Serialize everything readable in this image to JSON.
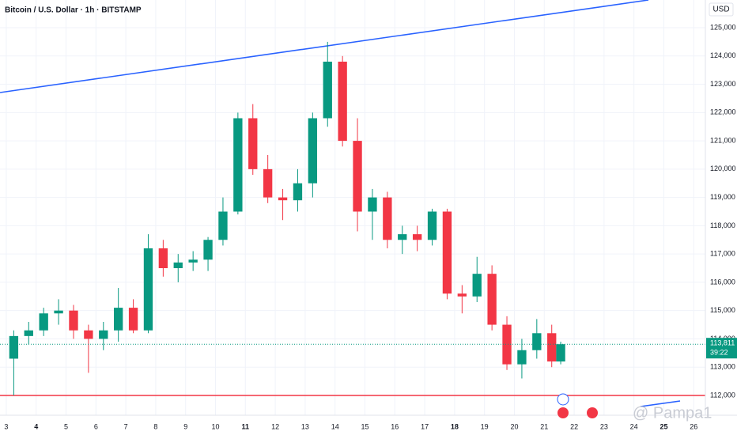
{
  "chart_data": {
    "type": "candlestick",
    "title": "Bitcoin / U.S. Dollar · 1h · BITSTAMP",
    "currency": "USD",
    "watermark": "@ Pampa1",
    "last_price_label": "113,811",
    "countdown": "39:22",
    "up_color": "#089981",
    "down_color": "#f23645",
    "x": [
      3.25,
      3.75,
      4.25,
      4.75,
      5.25,
      5.75,
      6.25,
      6.75,
      7.25,
      7.75,
      8.25,
      8.75,
      9.25,
      9.75,
      10.25,
      10.75,
      11.25,
      11.75,
      12.25,
      12.75,
      13.25,
      13.75,
      14.25,
      14.75,
      15.25,
      15.75,
      16.25,
      16.75,
      17.25,
      17.75,
      18.25,
      18.75,
      19.25,
      19.75,
      20.25,
      20.75,
      21.25,
      21.55
    ],
    "open": [
      113300,
      114100,
      114300,
      114900,
      115000,
      114300,
      114000,
      114300,
      115100,
      114300,
      117200,
      116500,
      116700,
      116800,
      117500,
      118500,
      121800,
      120000,
      119000,
      118900,
      119500,
      121800,
      123800,
      121000,
      118500,
      119000,
      117500,
      117700,
      117500,
      118500,
      115600,
      115500,
      116300,
      114500,
      113100,
      113600,
      114200,
      113200
    ],
    "high": [
      114300,
      114600,
      115100,
      115400,
      115200,
      114500,
      114600,
      115800,
      115400,
      117700,
      117500,
      117000,
      117100,
      117600,
      119000,
      122000,
      122300,
      120500,
      119300,
      120000,
      122000,
      124500,
      124000,
      121800,
      119300,
      119200,
      118000,
      118000,
      118600,
      118600,
      115900,
      116900,
      116600,
      114800,
      114000,
      114700,
      114500,
      113900
    ],
    "low": [
      112000,
      113800,
      114100,
      114500,
      114000,
      112800,
      113600,
      113900,
      114200,
      114200,
      116200,
      116000,
      116400,
      116400,
      117300,
      118400,
      119800,
      118800,
      118200,
      118500,
      119000,
      121500,
      120800,
      117800,
      117500,
      117200,
      117000,
      117100,
      117300,
      115400,
      114900,
      115300,
      114300,
      112900,
      112600,
      113300,
      113000,
      113100
    ],
    "close": [
      114100,
      114300,
      114900,
      115000,
      114300,
      114000,
      114300,
      115100,
      114300,
      117200,
      116500,
      116700,
      116800,
      117500,
      118500,
      121800,
      120000,
      119000,
      118900,
      119500,
      121800,
      123800,
      121000,
      118500,
      119000,
      117500,
      117700,
      117500,
      118500,
      115600,
      115500,
      116300,
      114500,
      113100,
      113600,
      114200,
      113200,
      113811
    ],
    "xlim": [
      2.79,
      26.39
    ],
    "xticks": [
      3,
      4,
      5,
      6,
      7,
      8,
      9,
      10,
      11,
      12,
      13,
      14,
      15,
      16,
      17,
      18,
      19,
      20,
      21,
      22,
      23,
      24,
      25,
      26
    ],
    "bold_xticks": [
      4,
      11,
      18,
      25
    ],
    "ylim": [
      111300,
      125980
    ],
    "yticks": [
      {
        "value": 112000,
        "label": "112,000"
      },
      {
        "value": 113000,
        "label": "113,000"
      },
      {
        "value": 114000,
        "label": "114,000"
      },
      {
        "value": 115000,
        "label": "115,000"
      },
      {
        "value": 116000,
        "label": "116,000"
      },
      {
        "value": 117000,
        "label": "117,000"
      },
      {
        "value": 118000,
        "label": "118,000"
      },
      {
        "value": 119000,
        "label": "119,000"
      },
      {
        "value": 120000,
        "label": "120,000"
      },
      {
        "value": 121000,
        "label": "121,000"
      },
      {
        "value": 122000,
        "label": "122,000"
      },
      {
        "value": 123000,
        "label": "123,000"
      },
      {
        "value": 124000,
        "label": "124,000"
      },
      {
        "value": 125000,
        "label": "125,000"
      }
    ],
    "grid": true
  }
}
